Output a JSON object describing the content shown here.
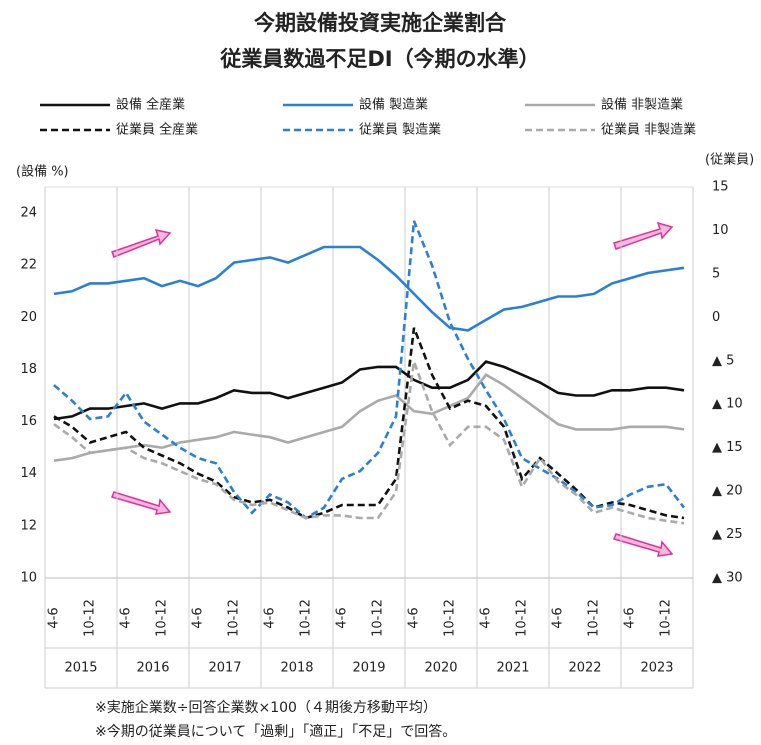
{
  "chart_data": {
    "type": "line",
    "title": [
      "今期設備投資実施企業割合",
      "従業員数過不足DI（今期の水準）"
    ],
    "y_label": "(設備 %)",
    "y2_label": "(従業員)",
    "categories": [
      "4-6",
      null,
      "10-12",
      null,
      "4-6",
      null,
      "10-12",
      null,
      "4-6",
      null,
      "10-12",
      null,
      "4-6",
      null,
      "10-12",
      null,
      "4-6",
      null,
      "10-12",
      null,
      "4-6",
      null,
      "10-12",
      null,
      "4-6",
      null,
      "10-12",
      null,
      "4-6",
      null,
      "10-12",
      null,
      "4-6",
      null,
      "10-12",
      null
    ],
    "years": [
      "2015",
      "2016",
      "2017",
      "2018",
      "2019",
      "2020",
      "2021",
      "2022",
      "2023"
    ],
    "ylim": [
      10,
      25
    ],
    "yticks": [
      10,
      12,
      14,
      16,
      18,
      20,
      22,
      24
    ],
    "y2lim": [
      -30,
      15
    ],
    "y2ticks": [
      15,
      10,
      5,
      0,
      {
        "value": -5,
        "label": "▲ 5"
      },
      {
        "value": -10,
        "label": "▲ 10"
      },
      {
        "value": -15,
        "label": "▲ 15"
      },
      {
        "value": -20,
        "label": "▲ 20"
      },
      {
        "value": -25,
        "label": "▲ 25"
      },
      {
        "value": -30,
        "label": "▲ 30"
      }
    ],
    "grid": false,
    "series": [
      {
        "name": "設備 全産業",
        "color": "#111111",
        "dashed": false,
        "values": [
          16.1,
          16.2,
          16.5,
          16.5,
          16.6,
          16.7,
          16.5,
          16.7,
          16.7,
          16.9,
          17.2,
          17.1,
          17.1,
          16.9,
          17.1,
          17.3,
          17.5,
          18.0,
          18.1,
          18.1,
          17.6,
          17.3,
          17.3,
          17.6,
          18.3,
          18.1,
          17.8,
          17.5,
          17.1,
          17.0,
          17.0,
          17.2,
          17.2,
          17.3,
          17.3,
          17.2
        ]
      },
      {
        "name": "設備 製造業",
        "color": "#2a80d2",
        "dashed": false,
        "values": [
          20.9,
          21.0,
          21.3,
          21.3,
          21.4,
          21.5,
          21.2,
          21.4,
          21.2,
          21.5,
          22.1,
          22.2,
          22.3,
          22.1,
          22.4,
          22.7,
          22.7,
          22.7,
          22.2,
          21.6,
          20.9,
          20.2,
          19.6,
          19.5,
          19.9,
          20.3,
          20.4,
          20.6,
          20.8,
          20.8,
          20.9,
          21.3,
          21.5,
          21.7,
          21.8,
          21.9
        ]
      },
      {
        "name": "設備 非製造業",
        "color": "#aaaaaa",
        "dashed": false,
        "values": [
          14.5,
          14.6,
          14.8,
          14.9,
          15.0,
          15.1,
          15.0,
          15.2,
          15.3,
          15.4,
          15.6,
          15.5,
          15.4,
          15.2,
          15.4,
          15.6,
          15.8,
          16.4,
          16.8,
          17.0,
          16.4,
          16.3,
          16.6,
          16.9,
          17.8,
          17.4,
          16.9,
          16.4,
          15.9,
          15.7,
          15.7,
          15.7,
          15.8,
          15.8,
          15.8,
          15.7
        ]
      },
      {
        "name": "従業員 全産業",
        "color": "#111111",
        "dashed": true,
        "axis": "y2",
        "values": [
          -11.4,
          -12.6,
          -14.4,
          -13.8,
          -13.2,
          -15,
          -15.9,
          -16.8,
          -18,
          -18.9,
          -20.7,
          -21.3,
          -21,
          -21.9,
          -23.1,
          -22.5,
          -21.6,
          -21.6,
          -21.6,
          -18.6,
          -1.2,
          -6.6,
          -10.5,
          -9.6,
          -10.2,
          -12.6,
          -18.6,
          -16.2,
          -18,
          -19.8,
          -21.9,
          -21.3,
          -21.6,
          -22.2,
          -22.8,
          -23.1
        ]
      },
      {
        "name": "従業員 製造業",
        "color": "#2a80d2",
        "dashed": true,
        "axis": "y2",
        "values": [
          -7.8,
          -9.6,
          -11.7,
          -11.4,
          -8.7,
          -12,
          -13.5,
          -15,
          -16.2,
          -16.8,
          -20.1,
          -22.5,
          -20.4,
          -21.3,
          -23.1,
          -21.9,
          -18.6,
          -17.7,
          -15.6,
          -11.4,
          11.1,
          6,
          -0.6,
          -4.8,
          -8.4,
          -11.7,
          -16.2,
          -17.4,
          -18.6,
          -20.1,
          -21.9,
          -21.6,
          -20.4,
          -19.5,
          -19.2,
          -21.9
        ]
      },
      {
        "name": "従業員 非製造業",
        "color": "#aaaaaa",
        "dashed": true,
        "axis": "y2",
        "values": [
          -12.3,
          -13.8,
          -15.6,
          -15.3,
          -15,
          -16.2,
          -16.8,
          -17.7,
          -18.6,
          -19.2,
          -21,
          -21.6,
          -21.3,
          -22.2,
          -23.1,
          -22.8,
          -22.8,
          -23.1,
          -23.1,
          -20.1,
          -5.1,
          -10.8,
          -14.7,
          -12.6,
          -12.6,
          -14.1,
          -19.5,
          -16.2,
          -18.9,
          -20.4,
          -22.5,
          -21.9,
          -22.5,
          -23.1,
          -23.4,
          -23.7
        ]
      }
    ],
    "notes": [
      "※実施企業数÷回答企業数×100（４期後方移動平均）",
      "※今期の従業員について「過剰」「適正」「不足」で回答。"
    ]
  }
}
